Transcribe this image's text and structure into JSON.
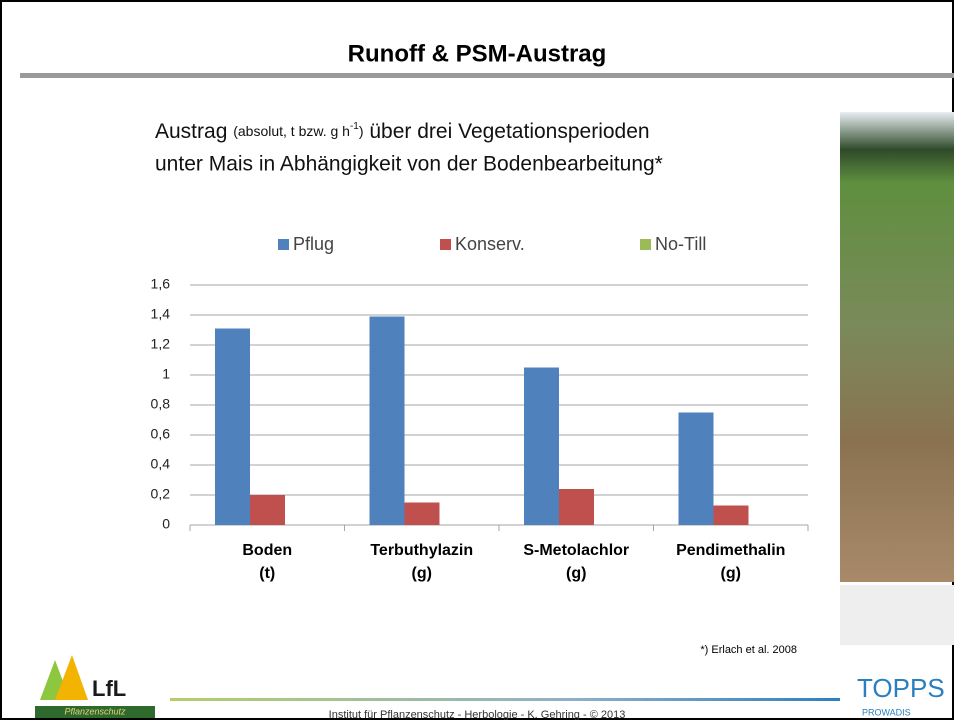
{
  "header": {
    "title": "Runoff & PSM-Austrag"
  },
  "subtitle": {
    "line1": [
      "Austrag",
      "(absolut, t bzw. g h",
      "-1",
      ")",
      "über drei Vegetationsperioden"
    ],
    "line2": "unter Mais in Abhängigkeit von der Bodenbearbeitung*"
  },
  "chart_data": {
    "type": "bar",
    "categories": [
      [
        "Boden",
        "(t)"
      ],
      [
        "Terbuthylazin",
        "(g)"
      ],
      [
        "S-Metolachlor",
        "(g)"
      ],
      [
        "Pendimethalin",
        "(g)"
      ]
    ],
    "series": [
      {
        "name": "Pflug",
        "color": "#4f81bd",
        "values": [
          1.31,
          1.39,
          1.05,
          0.75
        ]
      },
      {
        "name": "Konserv.",
        "color": "#c0504d",
        "values": [
          0.2,
          0.15,
          0.24,
          0.13
        ]
      },
      {
        "name": "No-Till",
        "color": "#9bbb59",
        "values": [
          0,
          0,
          0,
          0
        ]
      }
    ],
    "ylim": [
      0,
      1.6
    ],
    "yticks": [
      0,
      {
        "value": 0.2,
        "label": "0,2"
      },
      {
        "value": 0.4,
        "label": "0,4"
      },
      {
        "value": 0.6,
        "label": "0,6"
      },
      {
        "value": 0.8,
        "label": "0,8"
      },
      1,
      {
        "value": 1.2,
        "label": "1,2"
      },
      {
        "value": 1.4,
        "label": "1,4"
      },
      {
        "value": 1.6,
        "label": "1,6"
      }
    ],
    "grid": true,
    "legend": "top"
  },
  "footnote": "*) Erlach et al. 2008",
  "footer": "Institut für Pflanzenschutz  -  Herbologie  -  K. Gehring  -  © 2013",
  "logos": {
    "left": "LfL",
    "left_sub": "Pflanzenschutz",
    "right": "TOPPS",
    "right_sub": "PROWADIS"
  }
}
